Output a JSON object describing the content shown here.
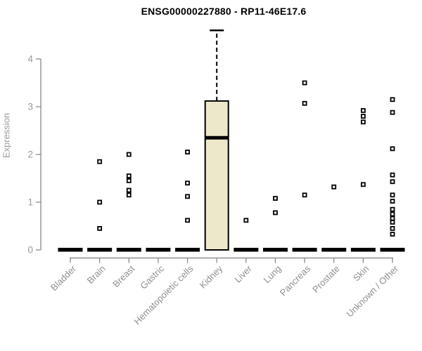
{
  "chart_data": {
    "type": "boxplot",
    "title": "ENSG00000227880 - RP11-46E17.6",
    "ylabel": "Expression",
    "xlabel": "",
    "ylim": [
      0,
      4.7
    ],
    "yticks": [
      0,
      1,
      2,
      3,
      4
    ],
    "grid": "off",
    "categories": [
      "Bladder",
      "Brain",
      "Breast",
      "Gastric",
      "Hematopoietic cells",
      "Kidney",
      "Liver",
      "Lung",
      "Pancreas",
      "Prostate",
      "Skin",
      "Unknown / Other"
    ],
    "boxes": [
      {
        "category": "Bladder",
        "median": 0,
        "q1": 0,
        "q3": 0,
        "whisker_low": 0,
        "whisker_high": 0,
        "outliers": []
      },
      {
        "category": "Brain",
        "median": 0,
        "q1": 0,
        "q3": 0,
        "whisker_low": 0,
        "whisker_high": 0,
        "outliers": [
          1.85,
          1.0,
          0.45
        ]
      },
      {
        "category": "Breast",
        "median": 0,
        "q1": 0,
        "q3": 0,
        "whisker_low": 0,
        "whisker_high": 0,
        "outliers": [
          2.0,
          1.55,
          1.45,
          1.25,
          1.15
        ]
      },
      {
        "category": "Gastric",
        "median": 0,
        "q1": 0,
        "q3": 0,
        "whisker_low": 0,
        "whisker_high": 0,
        "outliers": []
      },
      {
        "category": "Hematopoietic cells",
        "median": 0,
        "q1": 0,
        "q3": 0,
        "whisker_low": 0,
        "whisker_high": 0,
        "outliers": [
          2.05,
          1.4,
          1.12,
          0.62
        ]
      },
      {
        "category": "Kidney",
        "median": 2.35,
        "q1": 0,
        "q3": 3.12,
        "whisker_low": 0,
        "whisker_high": 4.6,
        "outliers": []
      },
      {
        "category": "Liver",
        "median": 0,
        "q1": 0,
        "q3": 0,
        "whisker_low": 0,
        "whisker_high": 0,
        "outliers": [
          0.62
        ]
      },
      {
        "category": "Lung",
        "median": 0,
        "q1": 0,
        "q3": 0,
        "whisker_low": 0,
        "whisker_high": 0,
        "outliers": [
          1.08,
          0.78
        ]
      },
      {
        "category": "Pancreas",
        "median": 0,
        "q1": 0,
        "q3": 0,
        "whisker_low": 0,
        "whisker_high": 0,
        "outliers": [
          3.5,
          3.07,
          1.15
        ]
      },
      {
        "category": "Prostate",
        "median": 0,
        "q1": 0,
        "q3": 0,
        "whisker_low": 0,
        "whisker_high": 0,
        "outliers": [
          1.32
        ]
      },
      {
        "category": "Skin",
        "median": 0,
        "q1": 0,
        "q3": 0,
        "whisker_low": 0,
        "whisker_high": 0,
        "outliers": [
          2.92,
          2.8,
          2.68,
          1.37
        ]
      },
      {
        "category": "Unknown / Other",
        "median": 0,
        "q1": 0,
        "q3": 0,
        "whisker_low": 0,
        "whisker_high": 0,
        "outliers": [
          3.15,
          2.88,
          2.12,
          1.57,
          1.43,
          1.15,
          1.02,
          0.85,
          0.75,
          0.66,
          0.58,
          0.45,
          0.33
        ]
      }
    ],
    "colors": {
      "background": "#FFFFFF",
      "box_fill": "#ECE8C9",
      "box_stroke": "#000000",
      "median": "#000000",
      "zero_bar": "#000000",
      "outlier_stroke": "#000000",
      "outlier_fill": "#FFFFFF",
      "axis": "#808080",
      "tick_text": "#999999",
      "category_text": "#8f8f8f",
      "title_text": "#000000"
    }
  }
}
